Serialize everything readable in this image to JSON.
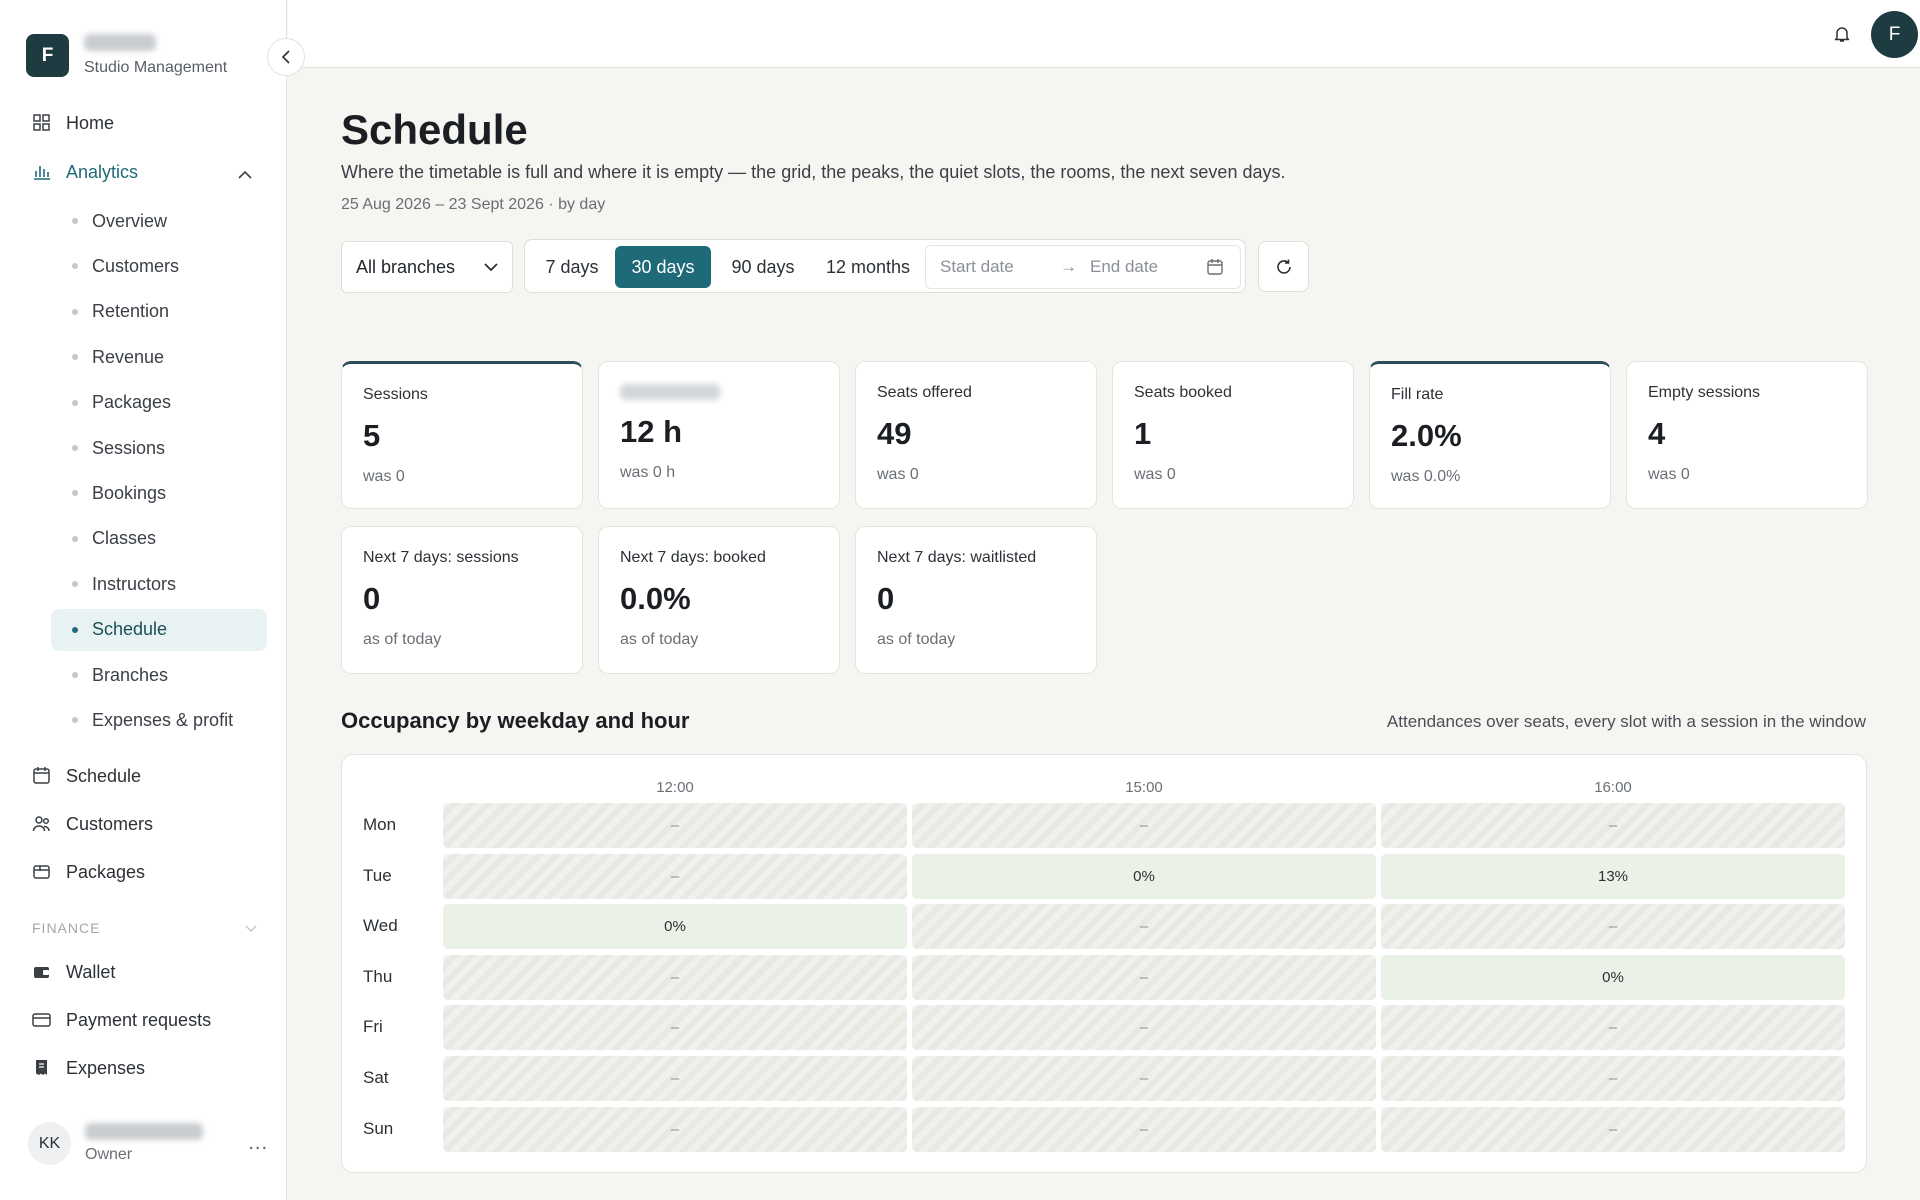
{
  "sidebar": {
    "brand_initial": "F",
    "brand_subtitle": "Studio Management",
    "nav_top": [
      {
        "label": "Home",
        "icon": "grid-icon"
      },
      {
        "label": "Analytics",
        "icon": "bar-chart-icon"
      }
    ],
    "analytics_sub": [
      "Overview",
      "Customers",
      "Retention",
      "Revenue",
      "Packages",
      "Sessions",
      "Bookings",
      "Classes",
      "Instructors",
      "Schedule",
      "Branches",
      "Expenses & profit"
    ],
    "active_sub": "Schedule",
    "nav_mid": [
      {
        "label": "Schedule",
        "icon": "calendar-icon"
      },
      {
        "label": "Customers",
        "icon": "users-icon"
      },
      {
        "label": "Packages",
        "icon": "package-icon"
      }
    ],
    "finance_label": "FINANCE",
    "nav_finance": [
      {
        "label": "Wallet",
        "icon": "wallet-icon"
      },
      {
        "label": "Payment requests",
        "icon": "card-icon"
      },
      {
        "label": "Expenses",
        "icon": "receipt-icon"
      }
    ],
    "user_initials": "KK",
    "user_role": "Owner",
    "user_more": "..."
  },
  "topbar": {
    "avatar_initial": "F"
  },
  "header": {
    "title": "Schedule",
    "description": "Where the timetable is full and where it is empty — the grid, the peaks, the quiet slots, the rooms, the next seven days.",
    "range": "25 Aug 2026 – 23 Sept 2026 · by day"
  },
  "filters": {
    "branch": "All branches",
    "ranges": [
      "7 days",
      "30 days",
      "90 days",
      "12 months"
    ],
    "active_range": "30 days",
    "start_placeholder": "Start date",
    "end_placeholder": "End date",
    "arrow": "→"
  },
  "kpis": [
    {
      "label": "Sessions",
      "value": "5",
      "sub": "was 0",
      "accent": true
    },
    {
      "label": "",
      "value": "12 h",
      "sub": "was 0 h",
      "accent": false,
      "blurred": true
    },
    {
      "label": "Seats offered",
      "value": "49",
      "sub": "was 0",
      "accent": false
    },
    {
      "label": "Seats booked",
      "value": "1",
      "sub": "was 0",
      "accent": false
    },
    {
      "label": "Fill rate",
      "value": "2.0%",
      "sub": "was 0.0%",
      "accent": true
    },
    {
      "label": "Empty sessions",
      "value": "4",
      "sub": "was 0",
      "accent": false
    },
    {
      "label": "Next 7 days: sessions",
      "value": "0",
      "sub": "as of today",
      "accent": false
    },
    {
      "label": "Next 7 days: booked",
      "value": "0.0%",
      "sub": "as of today",
      "accent": false
    },
    {
      "label": "Next 7 days: waitlisted",
      "value": "0",
      "sub": "as of today",
      "accent": false
    }
  ],
  "occupancy": {
    "title": "Occupancy by weekday and hour",
    "note": "Attendances over seats, every slot with a session in the window",
    "hours": [
      "12:00",
      "15:00",
      "16:00"
    ],
    "days": [
      "Mon",
      "Tue",
      "Wed",
      "Thu",
      "Fri",
      "Sat",
      "Sun"
    ],
    "empty_symbol": "–",
    "cells": [
      [
        null,
        null,
        null
      ],
      [
        null,
        "0%",
        "13%"
      ],
      [
        "0%",
        null,
        null
      ],
      [
        null,
        null,
        "0%"
      ],
      [
        null,
        null,
        null
      ],
      [
        null,
        null,
        null
      ],
      [
        null,
        null,
        null
      ]
    ]
  }
}
